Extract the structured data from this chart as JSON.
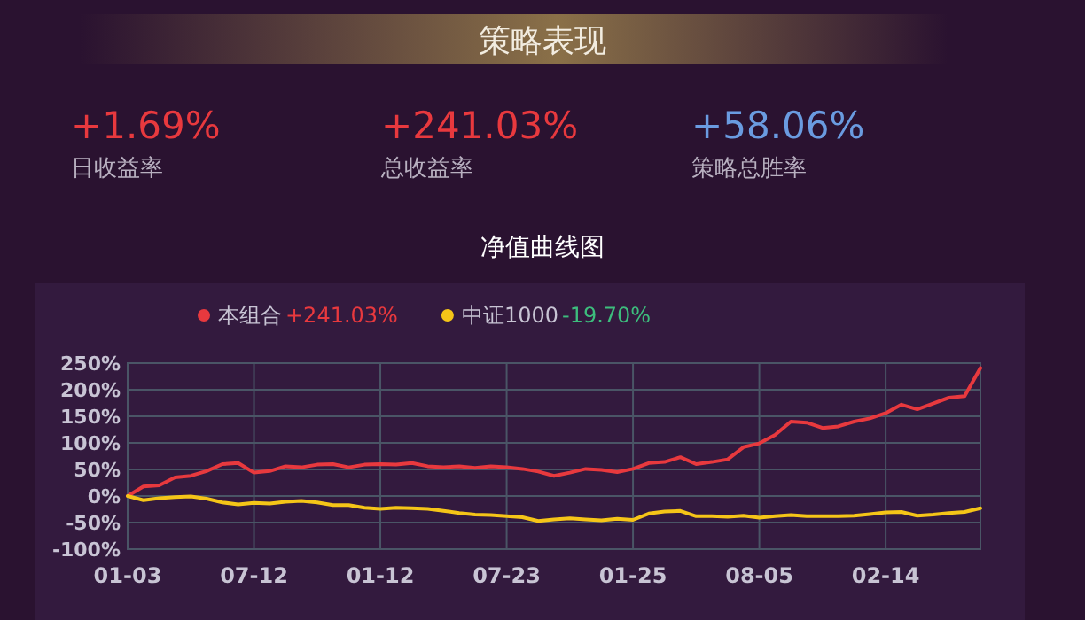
{
  "chart_data": [
    {
      "type": "other",
      "title": "策略表现",
      "annotations": [
        "+1.69%",
        "日收益率",
        "+241.03%",
        "总收益率",
        "+58.06%",
        "策略总胜率"
      ]
    },
    {
      "type": "line",
      "title": "净值曲线图",
      "grid": true,
      "legend": "top",
      "marker": "none",
      "line_style": "solid",
      "categories": [
        "01-03",
        null,
        null,
        null,
        null,
        null,
        null,
        null,
        "07-12",
        null,
        null,
        null,
        null,
        null,
        null,
        null,
        "01-12",
        null,
        null,
        null,
        null,
        null,
        null,
        null,
        "07-23",
        null,
        null,
        null,
        null,
        null,
        null,
        null,
        "01-25",
        null,
        null,
        null,
        null,
        null,
        null,
        null,
        "08-05",
        null,
        null,
        null,
        null,
        null,
        null,
        null,
        "02-14",
        null,
        null,
        null,
        null,
        null,
        null
      ],
      "ylim": [
        -100,
        250
      ],
      "yticks": [
        {
          "value": -100,
          "label": "-100%"
        },
        {
          "value": -50,
          "label": "-50%"
        },
        {
          "value": 0,
          "label": "0%"
        },
        {
          "value": 50,
          "label": "50%"
        },
        {
          "value": 100,
          "label": "100%"
        },
        {
          "value": 150,
          "label": "150%"
        },
        {
          "value": 200,
          "label": "200%"
        },
        {
          "value": 250,
          "label": "250%"
        }
      ],
      "annotations": [
        "+241.03%",
        "-19.70%"
      ],
      "series": [
        {
          "name": "本组合",
          "color": "#e8393e",
          "values": [
            0,
            18,
            20,
            35,
            38,
            47,
            60,
            62,
            44,
            47,
            56,
            54,
            59,
            60,
            54,
            59,
            60,
            59,
            62,
            56,
            54,
            56,
            53,
            56,
            54,
            51,
            46,
            38,
            44,
            51,
            49,
            45,
            51,
            62,
            64,
            73,
            60,
            64,
            69,
            92,
            99,
            115,
            140,
            138,
            128,
            131,
            140,
            146,
            156,
            172,
            163,
            174,
            185,
            188,
            241
          ]
        },
        {
          "name": "中证1000",
          "color": "#f5c518",
          "values": [
            0,
            -8,
            -4,
            -2,
            -1,
            -5,
            -12,
            -16,
            -13,
            -14,
            -11,
            -9,
            -12,
            -17,
            -17,
            -22,
            -24,
            -22,
            -23,
            -24,
            -28,
            -32,
            -35,
            -36,
            -38,
            -40,
            -47,
            -44,
            -42,
            -44,
            -46,
            -43,
            -45,
            -33,
            -29,
            -28,
            -38,
            -38,
            -39,
            -37,
            -41,
            -38,
            -36,
            -38,
            -38,
            -38,
            -37,
            -34,
            -31,
            -30,
            -37,
            -35,
            -32,
            -30,
            -23
          ]
        }
      ]
    }
  ]
}
